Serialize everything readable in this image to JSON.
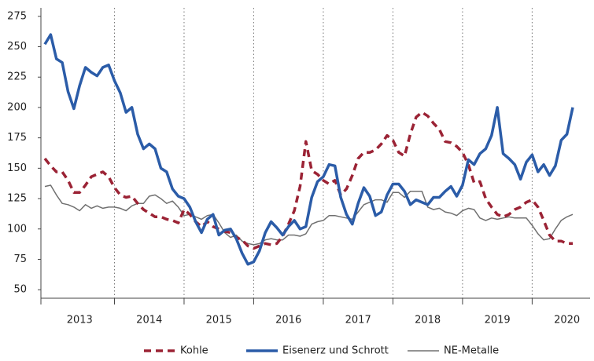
{
  "chart_data": {
    "type": "line",
    "categories": [
      null,
      null,
      null,
      null,
      null,
      null,
      "2013",
      null,
      null,
      null,
      null,
      null,
      null,
      null,
      null,
      null,
      null,
      null,
      "2014",
      null,
      null,
      null,
      null,
      null,
      null,
      null,
      null,
      null,
      null,
      null,
      "2015",
      null,
      null,
      null,
      null,
      null,
      null,
      null,
      null,
      null,
      null,
      null,
      "2016",
      null,
      null,
      null,
      null,
      null,
      null,
      null,
      null,
      null,
      null,
      null,
      "2017",
      null,
      null,
      null,
      null,
      null,
      null,
      null,
      null,
      null,
      null,
      null,
      "2018",
      null,
      null,
      null,
      null,
      null,
      null,
      null,
      null,
      null,
      null,
      null,
      "2019",
      null,
      null,
      null,
      null,
      null,
      null,
      null,
      null,
      null,
      null,
      null,
      "2020",
      null
    ],
    "series": [
      {
        "name": "Kohle",
        "color": "#9b2335",
        "line_style": "dashed",
        "values": [
          158,
          152,
          147,
          147,
          140,
          130,
          130,
          136,
          143,
          145,
          147,
          143,
          134,
          128,
          126,
          127,
          121,
          116,
          113,
          110,
          110,
          108,
          107,
          105,
          116,
          112,
          106,
          102,
          106,
          102,
          100,
          98,
          97,
          93,
          91,
          86,
          84,
          86,
          88,
          87,
          88,
          94,
          104,
          115,
          135,
          172,
          148,
          145,
          140,
          137,
          140,
          128,
          133,
          144,
          158,
          163,
          163,
          165,
          170,
          177,
          173,
          163,
          160,
          178,
          192,
          196,
          193,
          187,
          182,
          172,
          171,
          168,
          163,
          153,
          138,
          139,
          125,
          118,
          112,
          110,
          112,
          116,
          118,
          122,
          124,
          118,
          107,
          95,
          90,
          90,
          88,
          88
        ]
      },
      {
        "name": "Eisenerz und Schrott",
        "color": "#2b5ca8",
        "line_style": "solid",
        "values": [
          252,
          260,
          240,
          237,
          213,
          199,
          218,
          233,
          229,
          226,
          233,
          235,
          222,
          212,
          196,
          200,
          178,
          166,
          170,
          166,
          150,
          147,
          133,
          127,
          125,
          118,
          106,
          97,
          108,
          112,
          95,
          99,
          100,
          92,
          80,
          71,
          73,
          82,
          97,
          106,
          101,
          95,
          102,
          107,
          100,
          102,
          126,
          139,
          143,
          153,
          152,
          126,
          112,
          104,
          121,
          134,
          127,
          111,
          114,
          128,
          137,
          137,
          131,
          120,
          124,
          122,
          120,
          126,
          126,
          131,
          135,
          127,
          136,
          157,
          153,
          162,
          166,
          177,
          200,
          162,
          158,
          153,
          141,
          155,
          161,
          147,
          153,
          144,
          152,
          173,
          178,
          200
        ]
      },
      {
        "name": "NE-Metalle",
        "color": "#707070",
        "line_style": "thin",
        "values": [
          135,
          136,
          128,
          121,
          120,
          118,
          115,
          120,
          117,
          119,
          117,
          118,
          118,
          117,
          115,
          119,
          121,
          121,
          127,
          128,
          125,
          121,
          123,
          118,
          111,
          112,
          110,
          108,
          111,
          112,
          105,
          97,
          93,
          95,
          90,
          88,
          87,
          88,
          91,
          92,
          91,
          91,
          95,
          95,
          94,
          96,
          104,
          106,
          107,
          111,
          111,
          110,
          109,
          108,
          114,
          120,
          122,
          124,
          124,
          122,
          130,
          130,
          126,
          131,
          131,
          131,
          118,
          116,
          117,
          114,
          113,
          111,
          115,
          117,
          116,
          109,
          107,
          109,
          108,
          109,
          110,
          109,
          109,
          109,
          103,
          96,
          91,
          92,
          100,
          107,
          110,
          112
        ]
      }
    ],
    "ylim": [
      43,
      282
    ],
    "yticks": [
      50,
      75,
      100,
      125,
      150,
      175,
      200,
      225,
      250,
      275
    ],
    "grid": false,
    "legend": "bottom"
  }
}
